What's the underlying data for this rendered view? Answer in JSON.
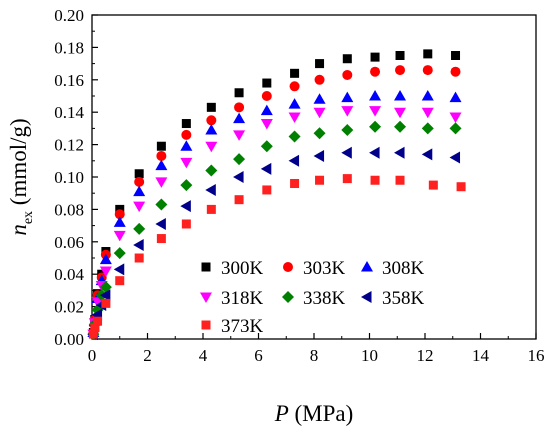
{
  "chart_data": {
    "type": "scatter",
    "xlabel": {
      "symbol": "P",
      "unit": " (MPa)"
    },
    "ylabel": {
      "symbol": "n",
      "subscript": "ex",
      "unit": " (mmol/g)"
    },
    "xlim": [
      0,
      16
    ],
    "ylim": [
      0,
      0.2
    ],
    "x_ticks": [
      "0",
      "2",
      "4",
      "6",
      "8",
      "10",
      "12",
      "14",
      "16"
    ],
    "y_ticks": [
      "0.00",
      "0.02",
      "0.04",
      "0.06",
      "0.08",
      "0.10",
      "0.12",
      "0.14",
      "0.16",
      "0.18",
      "0.20"
    ],
    "legend_position": "lower-right, inside plot",
    "grid": false,
    "series": [
      {
        "name": "300K",
        "marker": "square",
        "color": "#000000",
        "points": [
          [
            0.05,
            0.004
          ],
          [
            0.1,
            0.012
          ],
          [
            0.2,
            0.028
          ],
          [
            0.35,
            0.04
          ],
          [
            0.5,
            0.054
          ],
          [
            1.0,
            0.08
          ],
          [
            1.7,
            0.102
          ],
          [
            2.5,
            0.119
          ],
          [
            3.4,
            0.133
          ],
          [
            4.3,
            0.143
          ],
          [
            5.3,
            0.152
          ],
          [
            6.3,
            0.158
          ],
          [
            7.3,
            0.164
          ],
          [
            8.2,
            0.17
          ],
          [
            9.2,
            0.173
          ],
          [
            10.2,
            0.174
          ],
          [
            11.1,
            0.175
          ],
          [
            12.1,
            0.176
          ],
          [
            13.1,
            0.175
          ]
        ]
      },
      {
        "name": "303K",
        "marker": "circle",
        "color": "#ff0000",
        "points": [
          [
            0.05,
            0.004
          ],
          [
            0.1,
            0.012
          ],
          [
            0.2,
            0.027
          ],
          [
            0.35,
            0.038
          ],
          [
            0.5,
            0.052
          ],
          [
            1.0,
            0.077
          ],
          [
            1.7,
            0.097
          ],
          [
            2.5,
            0.113
          ],
          [
            3.4,
            0.126
          ],
          [
            4.3,
            0.135
          ],
          [
            5.3,
            0.143
          ],
          [
            6.3,
            0.15
          ],
          [
            7.3,
            0.156
          ],
          [
            8.2,
            0.16
          ],
          [
            9.2,
            0.163
          ],
          [
            10.2,
            0.165
          ],
          [
            11.1,
            0.166
          ],
          [
            12.1,
            0.166
          ],
          [
            13.1,
            0.165
          ]
        ]
      },
      {
        "name": "308K",
        "marker": "triangle-up",
        "color": "#0000ff",
        "points": [
          [
            0.05,
            0.004
          ],
          [
            0.1,
            0.011
          ],
          [
            0.2,
            0.025
          ],
          [
            0.35,
            0.036
          ],
          [
            0.5,
            0.049
          ],
          [
            1.0,
            0.072
          ],
          [
            1.7,
            0.091
          ],
          [
            2.5,
            0.107
          ],
          [
            3.4,
            0.119
          ],
          [
            4.3,
            0.129
          ],
          [
            5.3,
            0.136
          ],
          [
            6.3,
            0.141
          ],
          [
            7.3,
            0.145
          ],
          [
            8.2,
            0.148
          ],
          [
            9.2,
            0.149
          ],
          [
            10.2,
            0.15
          ],
          [
            11.1,
            0.15
          ],
          [
            12.1,
            0.15
          ],
          [
            13.1,
            0.149
          ]
        ]
      },
      {
        "name": "318K",
        "marker": "triangle-down",
        "color": "#ff00ff",
        "points": [
          [
            0.05,
            0.003
          ],
          [
            0.1,
            0.01
          ],
          [
            0.2,
            0.023
          ],
          [
            0.35,
            0.033
          ],
          [
            0.5,
            0.042
          ],
          [
            1.0,
            0.064
          ],
          [
            1.7,
            0.082
          ],
          [
            2.5,
            0.097
          ],
          [
            3.4,
            0.109
          ],
          [
            4.3,
            0.119
          ],
          [
            5.3,
            0.126
          ],
          [
            6.3,
            0.133
          ],
          [
            7.3,
            0.137
          ],
          [
            8.2,
            0.14
          ],
          [
            9.2,
            0.141
          ],
          [
            10.2,
            0.141
          ],
          [
            11.1,
            0.14
          ],
          [
            12.1,
            0.14
          ],
          [
            13.1,
            0.137
          ]
        ]
      },
      {
        "name": "338K",
        "marker": "diamond",
        "color": "#008000",
        "points": [
          [
            0.05,
            0.003
          ],
          [
            0.1,
            0.009
          ],
          [
            0.2,
            0.018
          ],
          [
            0.35,
            0.027
          ],
          [
            0.5,
            0.032
          ],
          [
            1.0,
            0.053
          ],
          [
            1.7,
            0.068
          ],
          [
            2.5,
            0.083
          ],
          [
            3.4,
            0.095
          ],
          [
            4.3,
            0.104
          ],
          [
            5.3,
            0.111
          ],
          [
            6.3,
            0.119
          ],
          [
            7.3,
            0.125
          ],
          [
            8.2,
            0.127
          ],
          [
            9.2,
            0.129
          ],
          [
            10.2,
            0.131
          ],
          [
            11.1,
            0.131
          ],
          [
            12.1,
            0.13
          ],
          [
            13.1,
            0.13
          ]
        ]
      },
      {
        "name": "358K",
        "marker": "triangle-left",
        "color": "#00008b",
        "points": [
          [
            0.05,
            0.003
          ],
          [
            0.1,
            0.008
          ],
          [
            0.2,
            0.015
          ],
          [
            0.35,
            0.021
          ],
          [
            0.5,
            0.027
          ],
          [
            1.0,
            0.043
          ],
          [
            1.7,
            0.058
          ],
          [
            2.5,
            0.071
          ],
          [
            3.4,
            0.082
          ],
          [
            4.3,
            0.092
          ],
          [
            5.3,
            0.1
          ],
          [
            6.3,
            0.105
          ],
          [
            7.3,
            0.11
          ],
          [
            8.2,
            0.113
          ],
          [
            9.2,
            0.115
          ],
          [
            10.2,
            0.115
          ],
          [
            11.1,
            0.115
          ],
          [
            12.1,
            0.114
          ],
          [
            13.1,
            0.112
          ]
        ]
      },
      {
        "name": "373K",
        "marker": "square",
        "color": "#ff2020",
        "points": [
          [
            0.05,
            0.003
          ],
          [
            0.1,
            0.007
          ],
          [
            0.2,
            0.011
          ],
          [
            0.5,
            0.022
          ],
          [
            1.0,
            0.036
          ],
          [
            1.7,
            0.05
          ],
          [
            2.5,
            0.062
          ],
          [
            3.4,
            0.071
          ],
          [
            4.3,
            0.08
          ],
          [
            5.3,
            0.086
          ],
          [
            6.3,
            0.092
          ],
          [
            7.3,
            0.096
          ],
          [
            8.2,
            0.098
          ],
          [
            9.2,
            0.099
          ],
          [
            10.2,
            0.098
          ],
          [
            11.1,
            0.098
          ],
          [
            12.3,
            0.095
          ],
          [
            13.3,
            0.094
          ]
        ]
      }
    ]
  }
}
